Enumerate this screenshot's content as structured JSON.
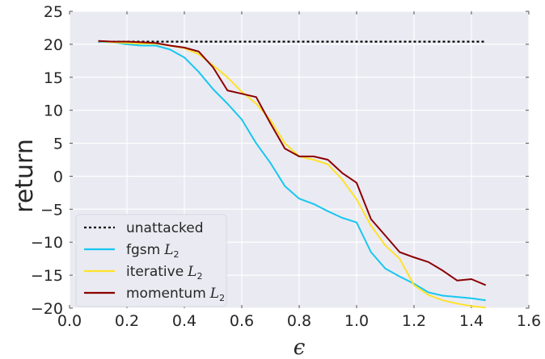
{
  "chart_data": {
    "type": "line",
    "xlabel": "ϵ",
    "ylabel": "return",
    "xlim": [
      0.0,
      1.6
    ],
    "ylim": [
      -20,
      25
    ],
    "xticks": [
      "0.0",
      "0.2",
      "0.4",
      "0.6",
      "0.8",
      "1.0",
      "1.2",
      "1.4",
      "1.6"
    ],
    "yticks": [
      "−20",
      "−15",
      "−10",
      "−5",
      "0",
      "5",
      "10",
      "15",
      "20",
      "25"
    ],
    "grid": true,
    "legend_position": "lower-left",
    "series": [
      {
        "name": "unattacked",
        "label": "unattacked",
        "color": "#000000",
        "dash": "dotted",
        "x": [
          0.1,
          1.45
        ],
        "y": [
          20.4,
          20.4
        ]
      },
      {
        "name": "fgsm L2",
        "label": "fgsm",
        "sub": "2",
        "color": "#17c7f0",
        "dash": "solid",
        "x": [
          0.1,
          0.15,
          0.2,
          0.25,
          0.3,
          0.35,
          0.4,
          0.45,
          0.5,
          0.55,
          0.6,
          0.65,
          0.7,
          0.75,
          0.8,
          0.85,
          0.9,
          0.95,
          1.0,
          1.05,
          1.1,
          1.15,
          1.2,
          1.25,
          1.3,
          1.35,
          1.4,
          1.45
        ],
        "y": [
          20.4,
          20.3,
          20.0,
          19.8,
          19.8,
          19.2,
          18.0,
          15.8,
          13.2,
          11.0,
          8.6,
          5.0,
          2.0,
          -1.5,
          -3.4,
          -4.2,
          -5.3,
          -6.3,
          -7.0,
          -11.5,
          -14.0,
          -15.2,
          -16.3,
          -17.6,
          -18.1,
          -18.3,
          -18.5,
          -18.8
        ]
      },
      {
        "name": "iterative L2",
        "label": "iterative",
        "sub": "2",
        "color": "#fee229",
        "dash": "solid",
        "x": [
          0.1,
          0.15,
          0.2,
          0.25,
          0.3,
          0.35,
          0.4,
          0.45,
          0.5,
          0.55,
          0.6,
          0.65,
          0.7,
          0.75,
          0.8,
          0.85,
          0.9,
          0.95,
          1.0,
          1.05,
          1.1,
          1.15,
          1.2,
          1.25,
          1.3,
          1.35,
          1.4,
          1.45
        ],
        "y": [
          20.5,
          20.3,
          20.2,
          20.1,
          20.1,
          19.8,
          19.4,
          18.5,
          16.8,
          15.0,
          12.8,
          11.0,
          8.5,
          5.0,
          3.0,
          2.5,
          1.8,
          -0.5,
          -3.5,
          -7.5,
          -10.5,
          -12.5,
          -16.5,
          -18.0,
          -18.8,
          -19.3,
          -19.7,
          -19.9
        ]
      },
      {
        "name": "momentum L2",
        "label": "momentum",
        "sub": "2",
        "color": "#8b0000",
        "dash": "solid",
        "x": [
          0.1,
          0.15,
          0.2,
          0.25,
          0.3,
          0.35,
          0.4,
          0.45,
          0.5,
          0.55,
          0.6,
          0.65,
          0.7,
          0.75,
          0.8,
          0.85,
          0.9,
          0.95,
          1.0,
          1.05,
          1.1,
          1.15,
          1.2,
          1.25,
          1.3,
          1.35,
          1.4,
          1.45
        ],
        "y": [
          20.5,
          20.4,
          20.4,
          20.3,
          20.2,
          19.8,
          19.5,
          18.9,
          16.5,
          13.0,
          12.5,
          12.0,
          8.0,
          4.2,
          3.0,
          3.0,
          2.5,
          0.5,
          -1.0,
          -6.5,
          -9.0,
          -11.5,
          -12.3,
          -13.0,
          -14.3,
          -15.8,
          -15.6,
          -16.5
        ]
      }
    ]
  }
}
